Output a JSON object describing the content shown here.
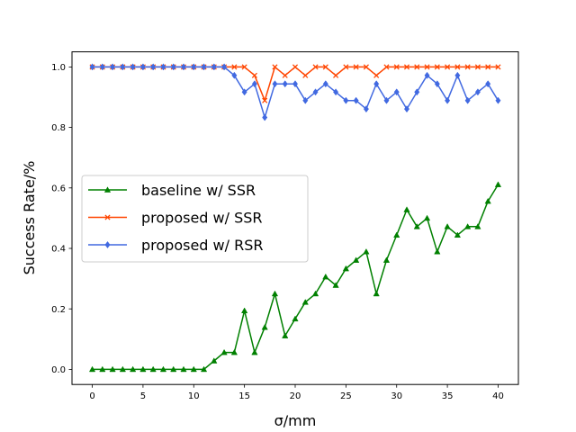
{
  "chart_data": {
    "type": "line",
    "title": "",
    "xlabel": "σ/mm",
    "ylabel": "Success Rate/%",
    "xlim": [
      -2,
      42
    ],
    "ylim": [
      -0.05,
      1.05
    ],
    "xticks": [
      0,
      5,
      10,
      15,
      20,
      25,
      30,
      35,
      40
    ],
    "xtick_labels": [
      "0",
      "5",
      "10",
      "15",
      "20",
      "25",
      "30",
      "35",
      "40"
    ],
    "yticks": [
      0.0,
      0.2,
      0.4,
      0.6,
      0.8,
      1.0
    ],
    "ytick_labels": [
      "0.0",
      "0.2",
      "0.4",
      "0.6",
      "0.8",
      "1.0"
    ],
    "grid": false,
    "legend_position": "center-left",
    "x": [
      0,
      1,
      2,
      3,
      4,
      5,
      6,
      7,
      8,
      9,
      10,
      11,
      12,
      13,
      14,
      15,
      16,
      17,
      18,
      19,
      20,
      21,
      22,
      23,
      24,
      25,
      26,
      27,
      28,
      29,
      30,
      31,
      32,
      33,
      34,
      35,
      36,
      37,
      38,
      39,
      40
    ],
    "series": [
      {
        "name": "baseline w/ SSR",
        "color": "#008000",
        "marker": "triangle",
        "values": [
          0,
          0,
          0,
          0,
          0,
          0,
          0,
          0,
          0,
          0,
          0,
          0,
          0.028,
          0.056,
          0.056,
          0.194,
          0.056,
          0.139,
          0.25,
          0.111,
          0.167,
          0.222,
          0.25,
          0.306,
          0.278,
          0.333,
          0.361,
          0.389,
          0.25,
          0.361,
          0.444,
          0.528,
          0.472,
          0.5,
          0.389,
          0.472,
          0.444,
          0.472,
          0.472,
          0.556,
          0.611
        ]
      },
      {
        "name": "proposed w/ SSR",
        "color": "#ff4500",
        "marker": "x",
        "values": [
          1,
          1,
          1,
          1,
          1,
          1,
          1,
          1,
          1,
          1,
          1,
          1,
          1,
          1,
          1,
          1,
          0.972,
          0.889,
          1,
          0.972,
          1,
          0.972,
          1,
          1,
          0.972,
          1,
          1,
          1,
          0.972,
          1,
          1,
          1,
          1,
          1,
          1,
          1,
          1,
          1,
          1,
          1,
          1
        ]
      },
      {
        "name": "proposed w/ RSR",
        "color": "#4169e1",
        "marker": "diamond",
        "values": [
          1,
          1,
          1,
          1,
          1,
          1,
          1,
          1,
          1,
          1,
          1,
          1,
          1,
          1,
          0.972,
          0.917,
          0.944,
          0.833,
          0.944,
          0.944,
          0.944,
          0.889,
          0.917,
          0.944,
          0.917,
          0.889,
          0.889,
          0.861,
          0.944,
          0.889,
          0.917,
          0.861,
          0.917,
          0.972,
          0.944,
          0.889,
          0.972,
          0.889,
          0.917,
          0.944,
          0.889
        ]
      }
    ]
  }
}
